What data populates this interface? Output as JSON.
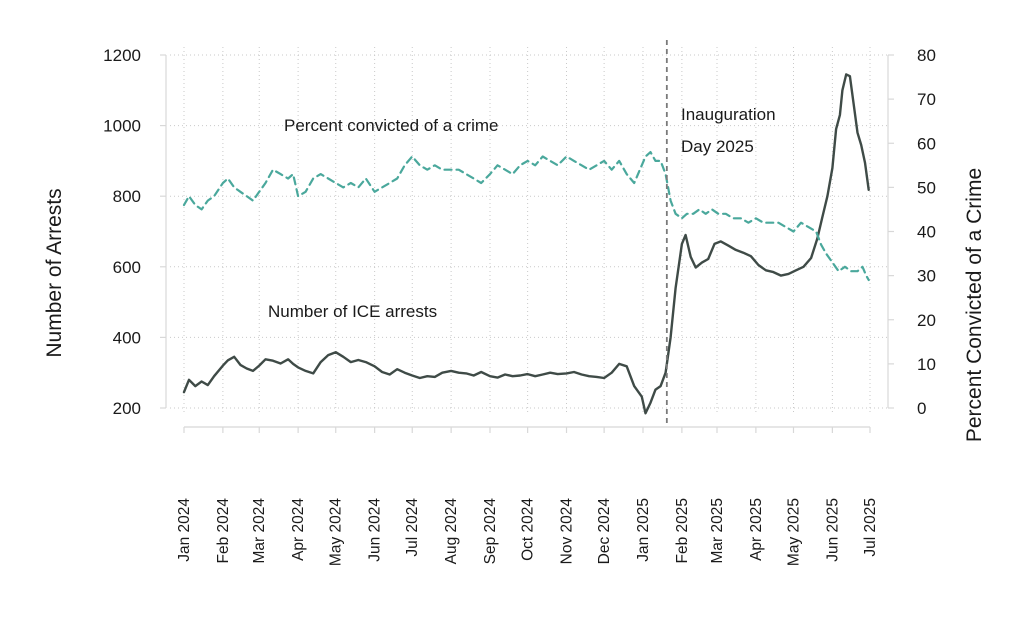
{
  "chart_data": {
    "type": "line",
    "title": "",
    "xlabel": "",
    "ylabel_left": "Number of Arrests",
    "ylabel_right": "Percent Convicted of a Crime",
    "ylim_left": [
      200,
      1200
    ],
    "ylim_right": [
      0,
      80
    ],
    "yticks_left": [
      200,
      400,
      600,
      800,
      1000,
      1200
    ],
    "yticks_right": [
      0,
      10,
      20,
      30,
      40,
      50,
      60,
      70,
      80
    ],
    "x_ticks": [
      "Jan 2024",
      "Feb 2024",
      "Mar 2024",
      "Apr 2024",
      "May 2024",
      "Jun 2024",
      "Jul 2024",
      "Aug 2024",
      "Sep 2024",
      "Oct 2024",
      "Nov 2024",
      "Dec 2024",
      "Jan 2025",
      "Feb 2025",
      "Mar 2025",
      "Apr 2025",
      "May 2025",
      "Jun 2025",
      "Jul 2025"
    ],
    "grid": true,
    "colors": {
      "arrests": "#3f4b47",
      "percent": "#4aa89c",
      "vline": "#7a7a7a"
    },
    "vline": {
      "date": "2025-01-20",
      "label_line1": "Inauguration",
      "label_line2": "Day 2025"
    },
    "series": [
      {
        "name": "Number of ICE arrests",
        "axis": "left",
        "style": "solid",
        "label": "Number of ICE arrests",
        "points": [
          [
            "2024-01-01",
            245
          ],
          [
            "2024-01-05",
            280
          ],
          [
            "2024-01-10",
            262
          ],
          [
            "2024-01-15",
            275
          ],
          [
            "2024-01-20",
            265
          ],
          [
            "2024-01-25",
            290
          ],
          [
            "2024-02-01",
            320
          ],
          [
            "2024-02-05",
            335
          ],
          [
            "2024-02-10",
            345
          ],
          [
            "2024-02-15",
            322
          ],
          [
            "2024-02-20",
            312
          ],
          [
            "2024-02-25",
            305
          ],
          [
            "2024-03-01",
            320
          ],
          [
            "2024-03-06",
            338
          ],
          [
            "2024-03-12",
            334
          ],
          [
            "2024-03-18",
            326
          ],
          [
            "2024-03-24",
            338
          ],
          [
            "2024-03-28",
            325
          ],
          [
            "2024-04-01",
            315
          ],
          [
            "2024-04-07",
            305
          ],
          [
            "2024-04-13",
            298
          ],
          [
            "2024-04-19",
            330
          ],
          [
            "2024-04-25",
            350
          ],
          [
            "2024-05-01",
            358
          ],
          [
            "2024-05-07",
            345
          ],
          [
            "2024-05-13",
            330
          ],
          [
            "2024-05-19",
            336
          ],
          [
            "2024-05-25",
            330
          ],
          [
            "2024-06-01",
            318
          ],
          [
            "2024-06-07",
            302
          ],
          [
            "2024-06-13",
            295
          ],
          [
            "2024-06-19",
            310
          ],
          [
            "2024-06-25",
            300
          ],
          [
            "2024-07-01",
            292
          ],
          [
            "2024-07-07",
            285
          ],
          [
            "2024-07-13",
            290
          ],
          [
            "2024-07-19",
            288
          ],
          [
            "2024-07-25",
            300
          ],
          [
            "2024-08-01",
            305
          ],
          [
            "2024-08-07",
            300
          ],
          [
            "2024-08-13",
            298
          ],
          [
            "2024-08-19",
            292
          ],
          [
            "2024-08-25",
            302
          ],
          [
            "2024-09-01",
            290
          ],
          [
            "2024-09-07",
            286
          ],
          [
            "2024-09-13",
            295
          ],
          [
            "2024-09-19",
            290
          ],
          [
            "2024-09-25",
            292
          ],
          [
            "2024-10-01",
            296
          ],
          [
            "2024-10-07",
            290
          ],
          [
            "2024-10-13",
            295
          ],
          [
            "2024-10-19",
            300
          ],
          [
            "2024-10-25",
            296
          ],
          [
            "2024-11-01",
            298
          ],
          [
            "2024-11-07",
            302
          ],
          [
            "2024-11-13",
            295
          ],
          [
            "2024-11-19",
            290
          ],
          [
            "2024-11-25",
            288
          ],
          [
            "2024-12-01",
            285
          ],
          [
            "2024-12-07",
            300
          ],
          [
            "2024-12-13",
            325
          ],
          [
            "2024-12-19",
            318
          ],
          [
            "2024-12-25",
            262
          ],
          [
            "2024-12-31",
            232
          ],
          [
            "2025-01-03",
            185
          ],
          [
            "2025-01-07",
            215
          ],
          [
            "2025-01-11",
            252
          ],
          [
            "2025-01-15",
            262
          ],
          [
            "2025-01-19",
            300
          ],
          [
            "2025-01-23",
            400
          ],
          [
            "2025-01-27",
            540
          ],
          [
            "2025-02-01",
            665
          ],
          [
            "2025-02-04",
            690
          ],
          [
            "2025-02-08",
            628
          ],
          [
            "2025-02-12",
            598
          ],
          [
            "2025-02-17",
            612
          ],
          [
            "2025-02-22",
            622
          ],
          [
            "2025-02-27",
            665
          ],
          [
            "2025-03-04",
            672
          ],
          [
            "2025-03-10",
            660
          ],
          [
            "2025-03-16",
            648
          ],
          [
            "2025-03-22",
            640
          ],
          [
            "2025-03-28",
            630
          ],
          [
            "2025-04-03",
            605
          ],
          [
            "2025-04-09",
            590
          ],
          [
            "2025-04-15",
            585
          ],
          [
            "2025-04-21",
            575
          ],
          [
            "2025-04-27",
            580
          ],
          [
            "2025-05-03",
            590
          ],
          [
            "2025-05-09",
            600
          ],
          [
            "2025-05-15",
            625
          ],
          [
            "2025-05-20",
            680
          ],
          [
            "2025-05-24",
            740
          ],
          [
            "2025-05-28",
            800
          ],
          [
            "2025-06-01",
            880
          ],
          [
            "2025-06-04",
            990
          ],
          [
            "2025-06-07",
            1030
          ],
          [
            "2025-06-09",
            1100
          ],
          [
            "2025-06-12",
            1145
          ],
          [
            "2025-06-15",
            1140
          ],
          [
            "2025-06-18",
            1060
          ],
          [
            "2025-06-21",
            980
          ],
          [
            "2025-06-24",
            945
          ],
          [
            "2025-06-27",
            895
          ],
          [
            "2025-06-30",
            818
          ]
        ]
      },
      {
        "name": "Percent convicted of a crime",
        "axis": "right",
        "style": "dashed",
        "label": "Percent convicted of a crime",
        "points": [
          [
            "2024-01-01",
            46
          ],
          [
            "2024-01-05",
            48
          ],
          [
            "2024-01-10",
            46
          ],
          [
            "2024-01-15",
            45
          ],
          [
            "2024-01-20",
            47
          ],
          [
            "2024-01-25",
            48
          ],
          [
            "2024-02-01",
            51
          ],
          [
            "2024-02-05",
            52
          ],
          [
            "2024-02-10",
            50
          ],
          [
            "2024-02-15",
            49
          ],
          [
            "2024-02-20",
            48
          ],
          [
            "2024-02-25",
            47
          ],
          [
            "2024-03-01",
            49
          ],
          [
            "2024-03-06",
            51
          ],
          [
            "2024-03-12",
            54
          ],
          [
            "2024-03-18",
            53
          ],
          [
            "2024-03-24",
            52
          ],
          [
            "2024-03-28",
            53
          ],
          [
            "2024-04-01",
            48
          ],
          [
            "2024-04-07",
            49
          ],
          [
            "2024-04-13",
            52
          ],
          [
            "2024-04-19",
            53
          ],
          [
            "2024-04-25",
            52
          ],
          [
            "2024-05-01",
            51
          ],
          [
            "2024-05-07",
            50
          ],
          [
            "2024-05-13",
            51
          ],
          [
            "2024-05-19",
            50
          ],
          [
            "2024-05-25",
            52
          ],
          [
            "2024-06-01",
            49
          ],
          [
            "2024-06-07",
            50
          ],
          [
            "2024-06-13",
            51
          ],
          [
            "2024-06-19",
            52
          ],
          [
            "2024-06-25",
            55
          ],
          [
            "2024-07-01",
            57
          ],
          [
            "2024-07-07",
            55
          ],
          [
            "2024-07-13",
            54
          ],
          [
            "2024-07-19",
            55
          ],
          [
            "2024-07-25",
            54
          ],
          [
            "2024-08-01",
            54
          ],
          [
            "2024-08-07",
            54
          ],
          [
            "2024-08-13",
            53
          ],
          [
            "2024-08-19",
            52
          ],
          [
            "2024-08-25",
            51
          ],
          [
            "2024-09-01",
            53
          ],
          [
            "2024-09-07",
            55
          ],
          [
            "2024-09-13",
            54
          ],
          [
            "2024-09-19",
            53
          ],
          [
            "2024-09-25",
            55
          ],
          [
            "2024-10-01",
            56
          ],
          [
            "2024-10-07",
            55
          ],
          [
            "2024-10-13",
            57
          ],
          [
            "2024-10-19",
            56
          ],
          [
            "2024-10-25",
            55
          ],
          [
            "2024-11-01",
            57
          ],
          [
            "2024-11-07",
            56
          ],
          [
            "2024-11-13",
            55
          ],
          [
            "2024-11-19",
            54
          ],
          [
            "2024-11-25",
            55
          ],
          [
            "2024-12-01",
            56
          ],
          [
            "2024-12-07",
            54
          ],
          [
            "2024-12-13",
            56
          ],
          [
            "2024-12-19",
            53
          ],
          [
            "2024-12-25",
            51
          ],
          [
            "2024-12-31",
            55
          ],
          [
            "2025-01-03",
            57
          ],
          [
            "2025-01-07",
            58
          ],
          [
            "2025-01-11",
            56
          ],
          [
            "2025-01-15",
            56
          ],
          [
            "2025-01-19",
            53
          ],
          [
            "2025-01-23",
            47
          ],
          [
            "2025-01-27",
            44
          ],
          [
            "2025-02-01",
            43
          ],
          [
            "2025-02-05",
            44
          ],
          [
            "2025-02-10",
            44
          ],
          [
            "2025-02-15",
            45
          ],
          [
            "2025-02-20",
            44
          ],
          [
            "2025-02-25",
            45
          ],
          [
            "2025-03-02",
            44
          ],
          [
            "2025-03-08",
            44
          ],
          [
            "2025-03-14",
            43
          ],
          [
            "2025-03-20",
            43
          ],
          [
            "2025-03-26",
            42
          ],
          [
            "2025-04-01",
            43
          ],
          [
            "2025-04-07",
            42
          ],
          [
            "2025-04-13",
            42
          ],
          [
            "2025-04-19",
            42
          ],
          [
            "2025-04-25",
            41
          ],
          [
            "2025-05-01",
            40
          ],
          [
            "2025-05-07",
            42
          ],
          [
            "2025-05-13",
            41
          ],
          [
            "2025-05-19",
            40
          ],
          [
            "2025-05-23",
            37
          ],
          [
            "2025-05-27",
            35
          ],
          [
            "2025-06-01",
            33
          ],
          [
            "2025-06-06",
            31
          ],
          [
            "2025-06-11",
            32
          ],
          [
            "2025-06-16",
            31
          ],
          [
            "2025-06-21",
            31
          ],
          [
            "2025-06-25",
            32
          ],
          [
            "2025-06-28",
            30
          ],
          [
            "2025-06-30",
            29
          ]
        ]
      }
    ]
  }
}
